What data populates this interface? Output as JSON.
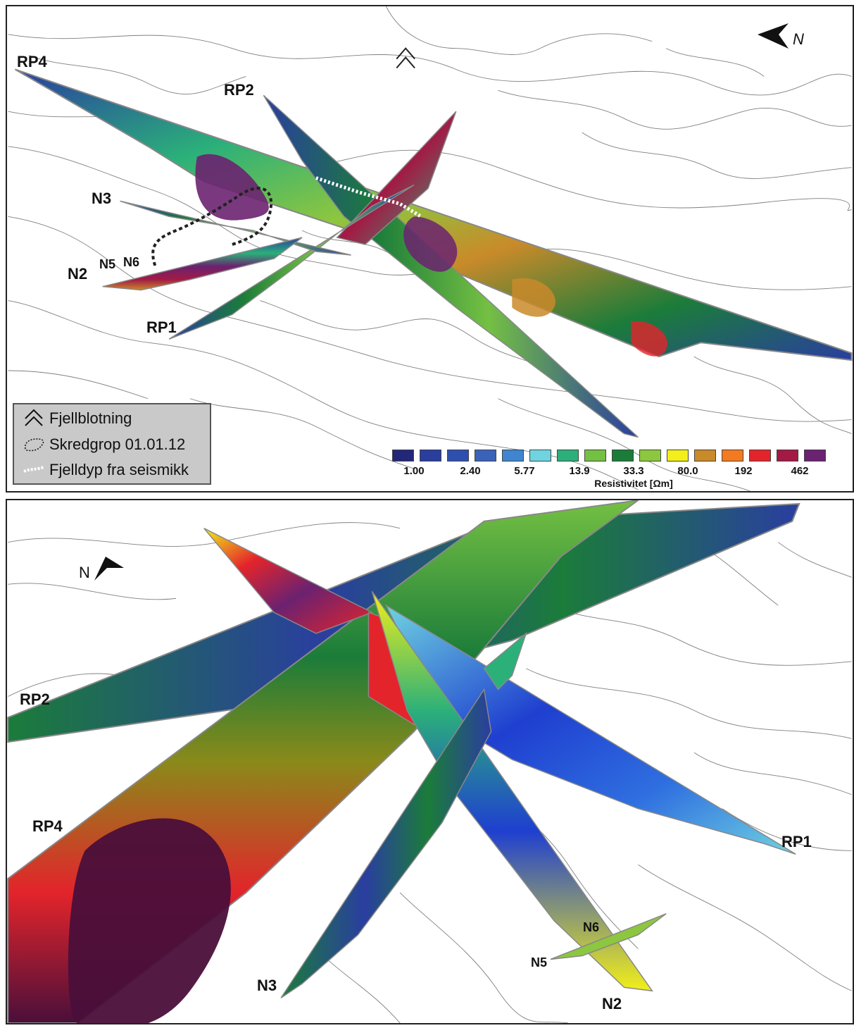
{
  "top_panel": {
    "profile_labels": [
      "RP4",
      "RP2",
      "N3",
      "N5",
      "N6",
      "N2",
      "RP1"
    ],
    "north_label": "N",
    "legend": {
      "items": [
        {
          "icon": "outcrop-chevron-icon",
          "label": "Fjellblotning"
        },
        {
          "icon": "slide-scar-outline-icon",
          "label": "Skredgrop 01.01.12"
        },
        {
          "icon": "seismic-depth-line-icon",
          "label": "Fjelldyp fra seismikk"
        }
      ]
    },
    "colorbar": {
      "title": "Resistivitet [Ωm]",
      "tick_labels": [
        "1.00",
        "2.40",
        "5.77",
        "13.9",
        "33.3",
        "80.0",
        "192",
        "462"
      ],
      "colors": [
        "#23277a",
        "#2a3ea0",
        "#2f4fb0",
        "#3a62b8",
        "#3f85cf",
        "#6fd3e0",
        "#2bb07a",
        "#74c043",
        "#1b7c3a",
        "#8dc63f",
        "#f2ef1a",
        "#c98a2a",
        "#f47a20",
        "#e3242b",
        "#a31a45",
        "#6b2270"
      ]
    }
  },
  "bottom_panel": {
    "profile_labels": [
      "RP2",
      "RP4",
      "RP1",
      "N6",
      "N5",
      "N3",
      "N2"
    ],
    "north_label": "N"
  }
}
